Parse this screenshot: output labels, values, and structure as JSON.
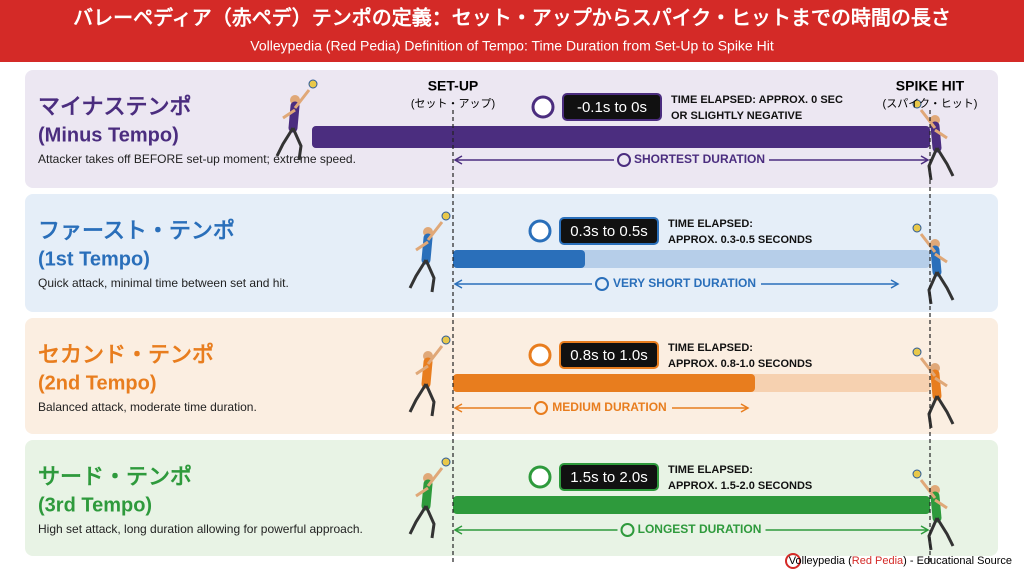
{
  "header": {
    "title": "バレーペディア（赤ペデ）テンポの定義：セット・アップからスパイク・ヒットまでの時間の長さ",
    "subtitle": "Volleypedia (Red Pedia) Definition of Tempo: Time Duration from Set-Up to Spike Hit"
  },
  "markers": {
    "setup": "SET-UP",
    "setup_jp": "(セット・アップ)",
    "spike": "SPIKE HIT",
    "spike_jp": "(スパイク・ヒット)"
  },
  "rows": [
    {
      "title_jp": "マイナステンポ",
      "title_en": "(Minus Tempo)",
      "description": "Attacker takes off BEFORE set-up moment; extreme speed.",
      "badge": "-0.1s to 0s",
      "elapsed": [
        "TIME ELAPSED: APPROX. 0 SEC",
        "OR SLIGHTLY NEGATIVE"
      ],
      "duration": "SHORTEST DURATION",
      "color": "#4b2d7f",
      "background": "#ece7f2"
    },
    {
      "title_jp": "ファースト・テンポ",
      "title_en": "(1st Tempo)",
      "description": "Quick attack, minimal time between set and hit.",
      "badge": "0.3s to 0.5s",
      "elapsed": [
        "TIME ELAPSED:",
        "APPROX. 0.3-0.5 SECONDS"
      ],
      "duration": "VERY SHORT DURATION",
      "color": "#2a6fba",
      "background": "#e5eef8"
    },
    {
      "title_jp": "セカンド・テンポ",
      "title_en": "(2nd Tempo)",
      "description": "Balanced attack, moderate time duration.",
      "badge": "0.8s to 1.0s",
      "elapsed": [
        "TIME ELAPSED:",
        "APPROX. 0.8-1.0 SECONDS"
      ],
      "duration": "MEDIUM DURATION",
      "color": "#e87d1e",
      "background": "#fbeee1"
    },
    {
      "title_jp": "サード・テンポ",
      "title_en": "(3rd Tempo)",
      "description": "High set attack, long duration allowing for powerful approach.",
      "badge": "1.5s to 2.0s",
      "elapsed": [
        "TIME ELAPSED:",
        "APPROX. 1.5-2.0 SECONDS"
      ],
      "duration": "LONGEST DURATION",
      "color": "#2e9a3c",
      "background": "#e8f3e5"
    }
  ],
  "footer": [
    "Volleypedia (",
    "Red Pedia",
    ") - Educational Source"
  ]
}
